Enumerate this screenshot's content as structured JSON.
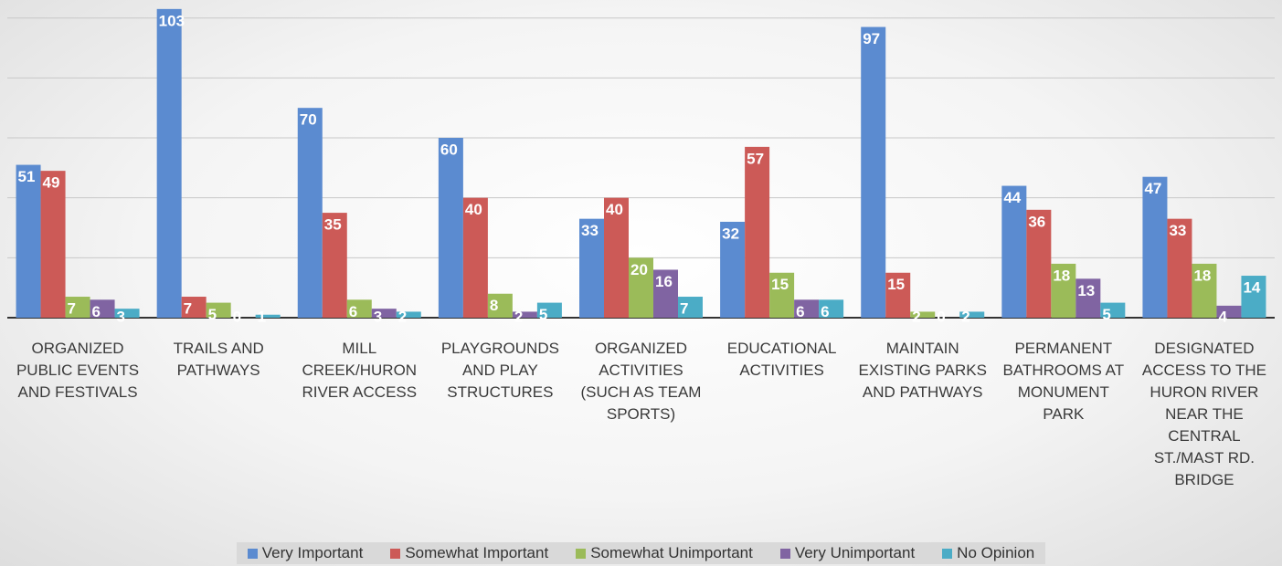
{
  "chart_data": {
    "type": "bar",
    "categories": [
      "ORGANIZED PUBLIC EVENTS AND FESTIVALS",
      "TRAILS AND PATHWAYS",
      "MILL CREEK/HURON RIVER ACCESS",
      "PLAYGROUNDS AND PLAY STRUCTURES",
      "ORGANIZED ACTIVITIES (SUCH AS TEAM SPORTS)",
      "EDUCATIONAL ACTIVITIES",
      "MAINTAIN EXISTING PARKS AND PATHWAYS",
      "PERMANENT BATHROOMS AT MONUMENT PARK",
      "DESIGNATED ACCESS TO THE HURON RIVER NEAR THE CENTRAL ST./MAST RD. BRIDGE"
    ],
    "series": [
      {
        "name": "Very Important",
        "color": "#5b8bd0",
        "values": [
          51,
          103,
          70,
          60,
          33,
          32,
          97,
          44,
          47
        ]
      },
      {
        "name": "Somewhat Important",
        "color": "#cc5a57",
        "values": [
          49,
          7,
          35,
          40,
          40,
          57,
          15,
          36,
          33
        ]
      },
      {
        "name": "Somewhat Unimportant",
        "color": "#9bbb59",
        "values": [
          7,
          5,
          6,
          8,
          20,
          15,
          2,
          18,
          18
        ]
      },
      {
        "name": "Very Unimportant",
        "color": "#8064a2",
        "values": [
          6,
          0,
          3,
          2,
          16,
          6,
          0,
          13,
          4
        ]
      },
      {
        "name": "No Opinion",
        "color": "#4bacc6",
        "values": [
          3,
          1,
          2,
          5,
          7,
          6,
          2,
          5,
          14
        ]
      }
    ],
    "ylim": [
      0,
      106
    ],
    "yticks": [
      0,
      20,
      40,
      60,
      80,
      100
    ],
    "grid": true,
    "legend": "bottom"
  }
}
